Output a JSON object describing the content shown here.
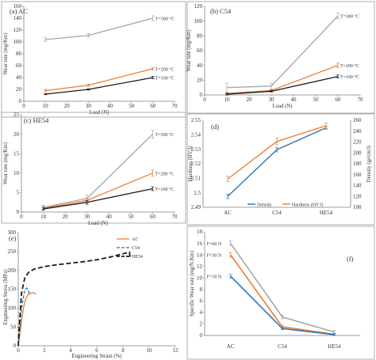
{
  "colors": {
    "gray": "#a6a6a6",
    "orange": "#ed7d31",
    "black": "#1a1a1a",
    "blue": "#2e75b6",
    "axis": "#7f7f7f",
    "text": "#333333"
  },
  "chart_data": [
    {
      "id": "a",
      "type": "line",
      "panel_label": "(a) AC",
      "x": [
        10,
        30,
        60
      ],
      "xlim": [
        0,
        70
      ],
      "xticks": [
        0,
        10,
        20,
        30,
        40,
        50,
        60,
        70
      ],
      "ylim": [
        0,
        160
      ],
      "yticks": [
        0,
        20,
        40,
        60,
        80,
        100,
        120,
        140,
        160
      ],
      "xlabel": "Load (N)",
      "ylabel": "Wear rate (mg/Km)",
      "series": [
        {
          "name": "T=300 °C",
          "color": "gray",
          "values": [
            104,
            111,
            140
          ],
          "err": [
            3,
            3,
            4
          ]
        },
        {
          "name": "T=200 °C",
          "color": "orange",
          "values": [
            18,
            27,
            55
          ],
          "err": [
            2,
            2,
            2
          ]
        },
        {
          "name": "T=100 °C",
          "color": "black",
          "values": [
            12,
            20,
            40
          ],
          "err": [
            1,
            1,
            2
          ]
        }
      ]
    },
    {
      "id": "b",
      "type": "line",
      "panel_label": "(b) C54",
      "x": [
        10,
        30,
        60
      ],
      "xlim": [
        0,
        70
      ],
      "xticks": [
        0,
        10,
        20,
        30,
        40,
        50,
        60,
        70
      ],
      "ylim": [
        0,
        120
      ],
      "yticks": [
        0,
        20,
        40,
        60,
        80,
        100,
        120
      ],
      "xlabel": "Load (N)",
      "ylabel": "Wear rate (mg/Km)",
      "series": [
        {
          "name": "T=300 °C",
          "color": "gray",
          "values": [
            10,
            12,
            107
          ],
          "err": [
            6,
            4,
            4
          ]
        },
        {
          "name": "T=200 °C",
          "color": "orange",
          "values": [
            2,
            6,
            40
          ],
          "err": [
            1,
            1,
            3
          ]
        },
        {
          "name": "T=100 °C",
          "color": "black",
          "values": [
            1,
            5,
            25
          ],
          "err": [
            1,
            1,
            2
          ]
        }
      ]
    },
    {
      "id": "c",
      "type": "line",
      "panel_label": "(c) HE54",
      "x": [
        10,
        30,
        60
      ],
      "xlim": [
        0,
        70
      ],
      "xticks": [
        0,
        10,
        20,
        30,
        40,
        50,
        60,
        70
      ],
      "ylim": [
        0,
        25
      ],
      "yticks": [
        0,
        5,
        10,
        15,
        20,
        25
      ],
      "xlabel": "Load (N)",
      "ylabel": "Wear rate (mg/Km)",
      "series": [
        {
          "name": "T=300 °C",
          "color": "gray",
          "values": [
            1.2,
            3.5,
            20
          ],
          "err": [
            0.5,
            0.8,
            1
          ]
        },
        {
          "name": "T=200 °C",
          "color": "orange",
          "values": [
            1,
            3,
            10
          ],
          "err": [
            0.5,
            0.6,
            0.8
          ]
        },
        {
          "name": "T=100 °C",
          "color": "black",
          "values": [
            0.8,
            2.5,
            6
          ],
          "err": [
            0.3,
            0.5,
            0.5
          ]
        }
      ]
    },
    {
      "id": "d",
      "type": "line",
      "panel_label": "(d)",
      "categories": [
        "AC",
        "C54",
        "HE54"
      ],
      "ylim": [
        2.49,
        2.55
      ],
      "yticks": [
        "2.49",
        "2.5",
        "2.51",
        "2.52",
        "2.53",
        "2.54",
        "2.55"
      ],
      "ylabel": "Hardness (HV3)",
      "y2lim": [
        100,
        260
      ],
      "y2ticks": [
        100,
        120,
        140,
        160,
        180,
        200,
        220,
        240,
        260
      ],
      "y2label": "Density (gr/cm3)",
      "series": [
        {
          "name": "Density",
          "color": "blue",
          "axis": "left",
          "values": [
            2.4975,
            2.5297,
            2.5448
          ],
          "err": [
            0.0015,
            0.0015,
            0.001
          ]
        },
        {
          "name": "Hardness (HV3)",
          "color": "orange",
          "axis": "right",
          "values": [
            152,
            221,
            250
          ],
          "err": [
            5,
            6,
            5
          ]
        }
      ],
      "legend": "bottom-right"
    },
    {
      "id": "e",
      "type": "line",
      "panel_label": "(e)",
      "xlim": [
        0,
        12
      ],
      "xticks": [
        0,
        2,
        4,
        6,
        8,
        10,
        12
      ],
      "ylim": [
        0,
        300
      ],
      "yticks": [
        0,
        50,
        100,
        150,
        200,
        250,
        300
      ],
      "xlabel": "Engineering Strain (%)",
      "ylabel": "Engineering Stress (MPa)",
      "series": [
        {
          "name": "AC",
          "color": "orange",
          "style": "solid",
          "x": [
            0,
            0.1,
            0.25,
            0.4,
            0.55,
            0.7,
            0.85,
            1.0,
            1.2,
            1.35
          ],
          "y": [
            0,
            25,
            65,
            100,
            122,
            133,
            138,
            140,
            140,
            137
          ]
        },
        {
          "name": "C54",
          "color": "blue",
          "style": "dashed",
          "x": [
            0,
            0.08,
            0.2,
            0.3,
            0.45,
            0.55,
            0.65,
            0.75,
            0.85
          ],
          "y": [
            0,
            30,
            80,
            110,
            140,
            150,
            153,
            148,
            138
          ]
        },
        {
          "name": "HE54",
          "color": "black",
          "style": "dashed",
          "x": [
            0,
            0.1,
            0.25,
            0.5,
            0.8,
            1.2,
            2,
            3,
            4,
            5,
            6,
            7,
            8,
            8.5,
            8.55
          ],
          "y": [
            0,
            60,
            140,
            180,
            195,
            203,
            210,
            215,
            219,
            223,
            228,
            235,
            244,
            248,
            232
          ]
        }
      ],
      "legend": "top-right"
    },
    {
      "id": "f",
      "type": "line",
      "panel_label": "(f)",
      "categories": [
        "AC",
        "C54",
        "HE54"
      ],
      "ylim": [
        0,
        18
      ],
      "yticks": [
        0,
        2,
        4,
        6,
        8,
        10,
        12,
        14,
        16,
        18
      ],
      "ylabel": "Specific Wear rate (mg/N.Km)",
      "series": [
        {
          "name": "F=60 N",
          "color": "gray",
          "values": [
            16,
            3.2,
            0.6
          ],
          "err": [
            0.4,
            0.3,
            0.3
          ]
        },
        {
          "name": "F=30 N",
          "color": "orange",
          "values": [
            14,
            1.5,
            0.2
          ],
          "err": [
            0.4,
            0.3,
            0.2
          ]
        },
        {
          "name": "F=10 N",
          "color": "blue",
          "values": [
            10.3,
            1.2,
            0.15
          ],
          "err": [
            0.3,
            0.2,
            0.1
          ]
        }
      ]
    }
  ]
}
